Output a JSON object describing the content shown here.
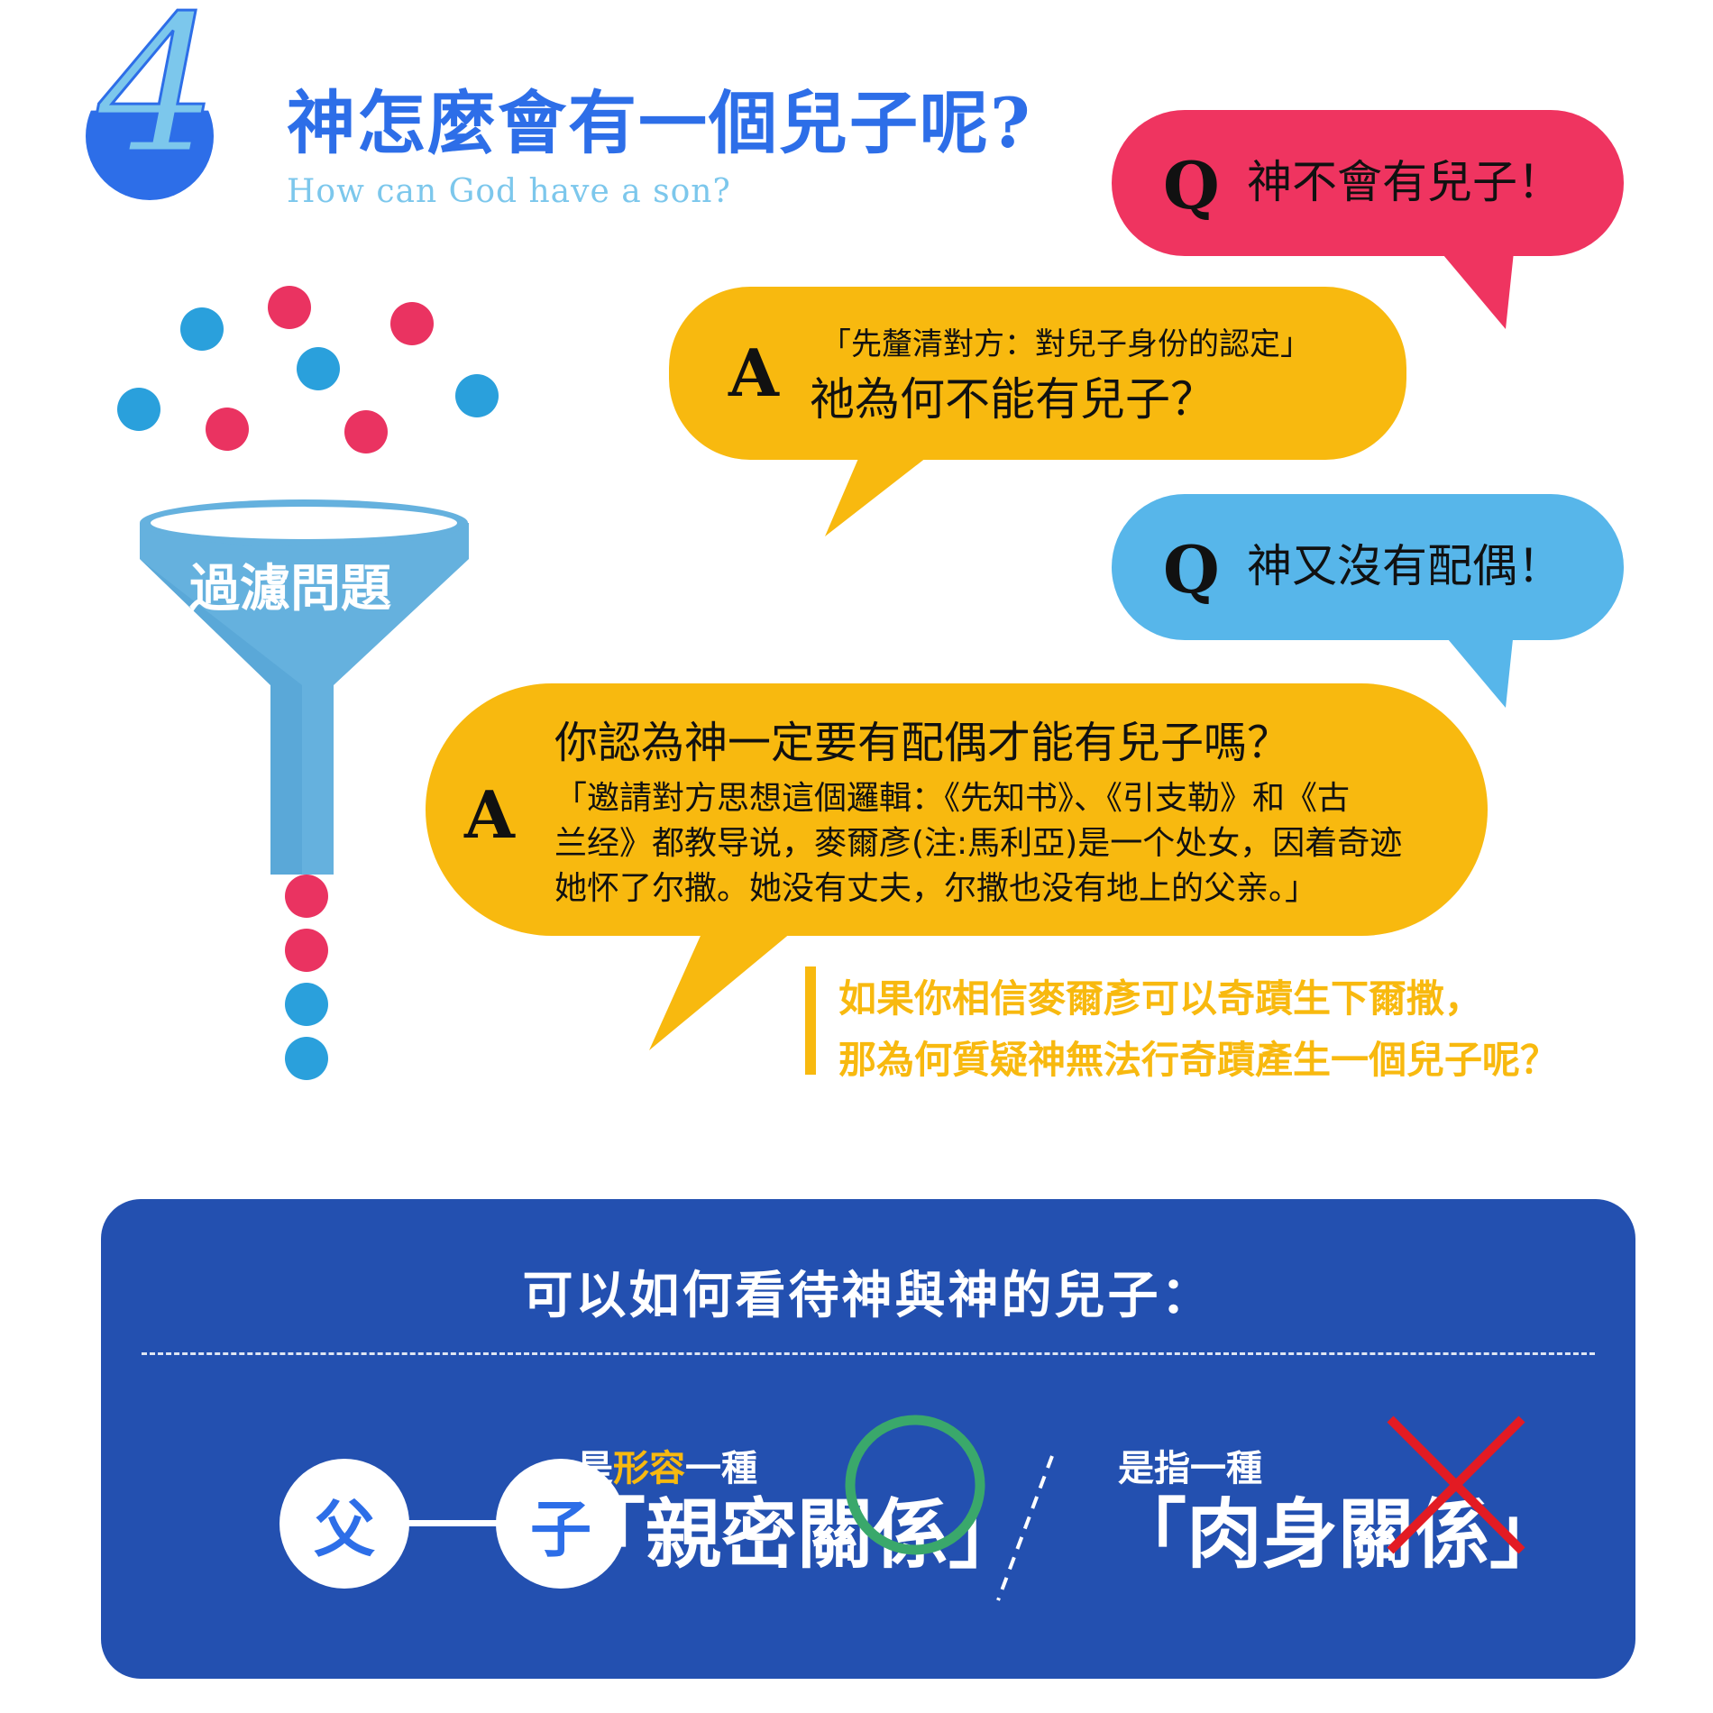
{
  "colors": {
    "blue_title": "#2d6ee8",
    "light_blue": "#7cc7ec",
    "red": "#ef3460",
    "yellow": "#f8b90f",
    "sky": "#57b6ea",
    "navy": "#2350b0",
    "dot_blue": "#2aa0dc",
    "dot_red": "#ea3361",
    "funnel": "#65b1de",
    "green_check": "#3aa86b",
    "red_cross": "#e31b23"
  },
  "header": {
    "number": "4",
    "title": "神怎麼會有一個兒子呢?",
    "subtitle": "How can God have a son?"
  },
  "funnel": {
    "label": "過濾問題"
  },
  "bubbles": {
    "q1": {
      "letter": "Q",
      "text": "神不會有兒子！"
    },
    "a1": {
      "letter": "A",
      "note": "「先釐清對方：對兒子身份的認定」",
      "text": "祂為何不能有兒子？"
    },
    "q2": {
      "letter": "Q",
      "text": "神又沒有配偶！"
    },
    "a2": {
      "letter": "A",
      "question": "你認為神一定要有配偶才能有兒子嗎？",
      "lines": [
        "「邀請對方思想這個邏輯：《先知书》、《引支勒》和《古",
        "兰经》都教导说，麥爾彥(注:馬利亞)是一个处女，因着奇迹",
        "她怀了尔撒。她没有丈夫，尔撒也没有地上的父亲。」"
      ]
    }
  },
  "conclusion": {
    "line1": "如果你相信麥爾彥可以奇蹟生下爾撒，",
    "line2": "那為何質疑神無法行奇蹟產生一個兒子呢？"
  },
  "panel": {
    "title": "可以如何看待神與神的兒子：",
    "father": "父",
    "son": "子",
    "left_small_prefix": "是",
    "left_small_highlight": "形容",
    "left_small_suffix": "一種",
    "left_big": "「親密關係」",
    "right_small": "是指一種",
    "right_big": "「肉身關係」"
  }
}
